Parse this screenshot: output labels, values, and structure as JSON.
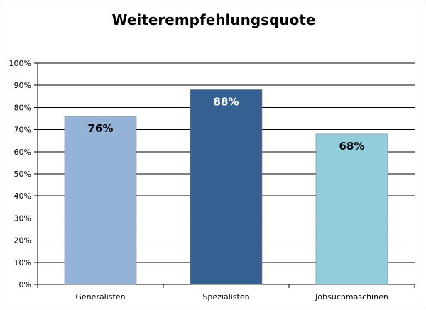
{
  "chart_data": {
    "type": "bar",
    "title": "Weiterempfehlungsquote",
    "xlabel": "",
    "ylabel": "",
    "categories": [
      "Generalisten",
      "Spezialisten",
      "Jobsuchmaschinen"
    ],
    "values": [
      76,
      88,
      68
    ],
    "data_labels": [
      "76%",
      "88%",
      "68%"
    ],
    "bar_colors": [
      "#95b3d7",
      "#376092",
      "#92cddc"
    ],
    "data_label_colors": [
      "#000000",
      "#ffffff",
      "#000000"
    ],
    "ylim": [
      0,
      100
    ],
    "yticks": [
      0,
      10,
      20,
      30,
      40,
      50,
      60,
      70,
      80,
      90,
      100
    ],
    "ytick_labels": [
      "0%",
      "10%",
      "20%",
      "30%",
      "40%",
      "50%",
      "60%",
      "70%",
      "80%",
      "90%",
      "100%"
    ],
    "grid": true,
    "legend": "none"
  }
}
